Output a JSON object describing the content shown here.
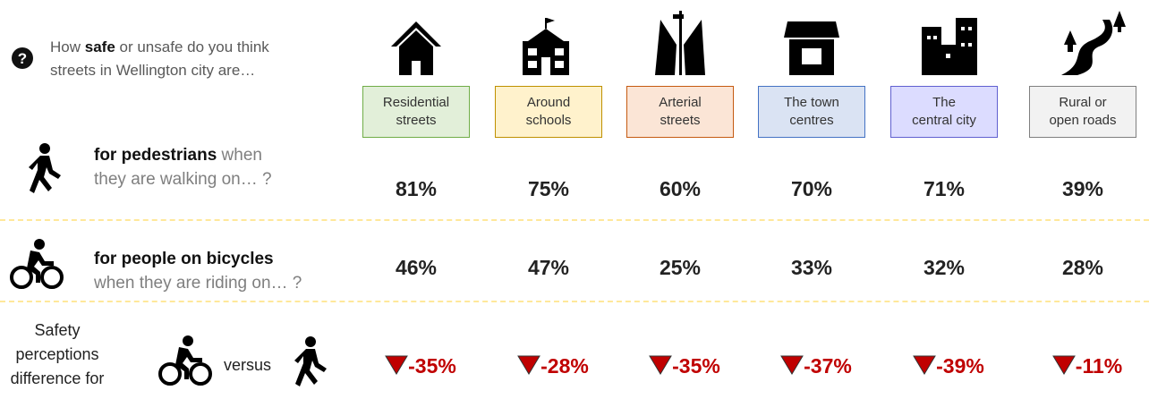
{
  "question": {
    "before": "How",
    "bold": "safe",
    "after": "or unsafe do you think streets in Wellington city are…"
  },
  "columns": [
    {
      "label": [
        "Residential",
        "streets"
      ]
    },
    {
      "label": [
        "Around",
        "schools"
      ]
    },
    {
      "label": [
        "Arterial",
        "streets"
      ]
    },
    {
      "label": [
        "The town",
        "centres"
      ]
    },
    {
      "label": [
        "The",
        "central city"
      ]
    },
    {
      "label": [
        "Rural or",
        "open roads"
      ]
    }
  ],
  "rows": [
    {
      "bold": "for pedestrians",
      "rest": [
        "when",
        "they are walking on… ?"
      ],
      "values": [
        "81%",
        "75%",
        "60%",
        "70%",
        "71%",
        "39%"
      ]
    },
    {
      "bold": "for people on bicycles",
      "rest": [
        "when they are riding on… ?"
      ],
      "values": [
        "46%",
        "47%",
        "25%",
        "33%",
        "32%",
        "28%"
      ]
    }
  ],
  "difference": {
    "label": [
      "Safety",
      "perceptions",
      "difference for"
    ],
    "versus": "versus",
    "values": [
      "-35%",
      "-28%",
      "-35%",
      "-37%",
      "-39%",
      "-11%"
    ]
  }
}
